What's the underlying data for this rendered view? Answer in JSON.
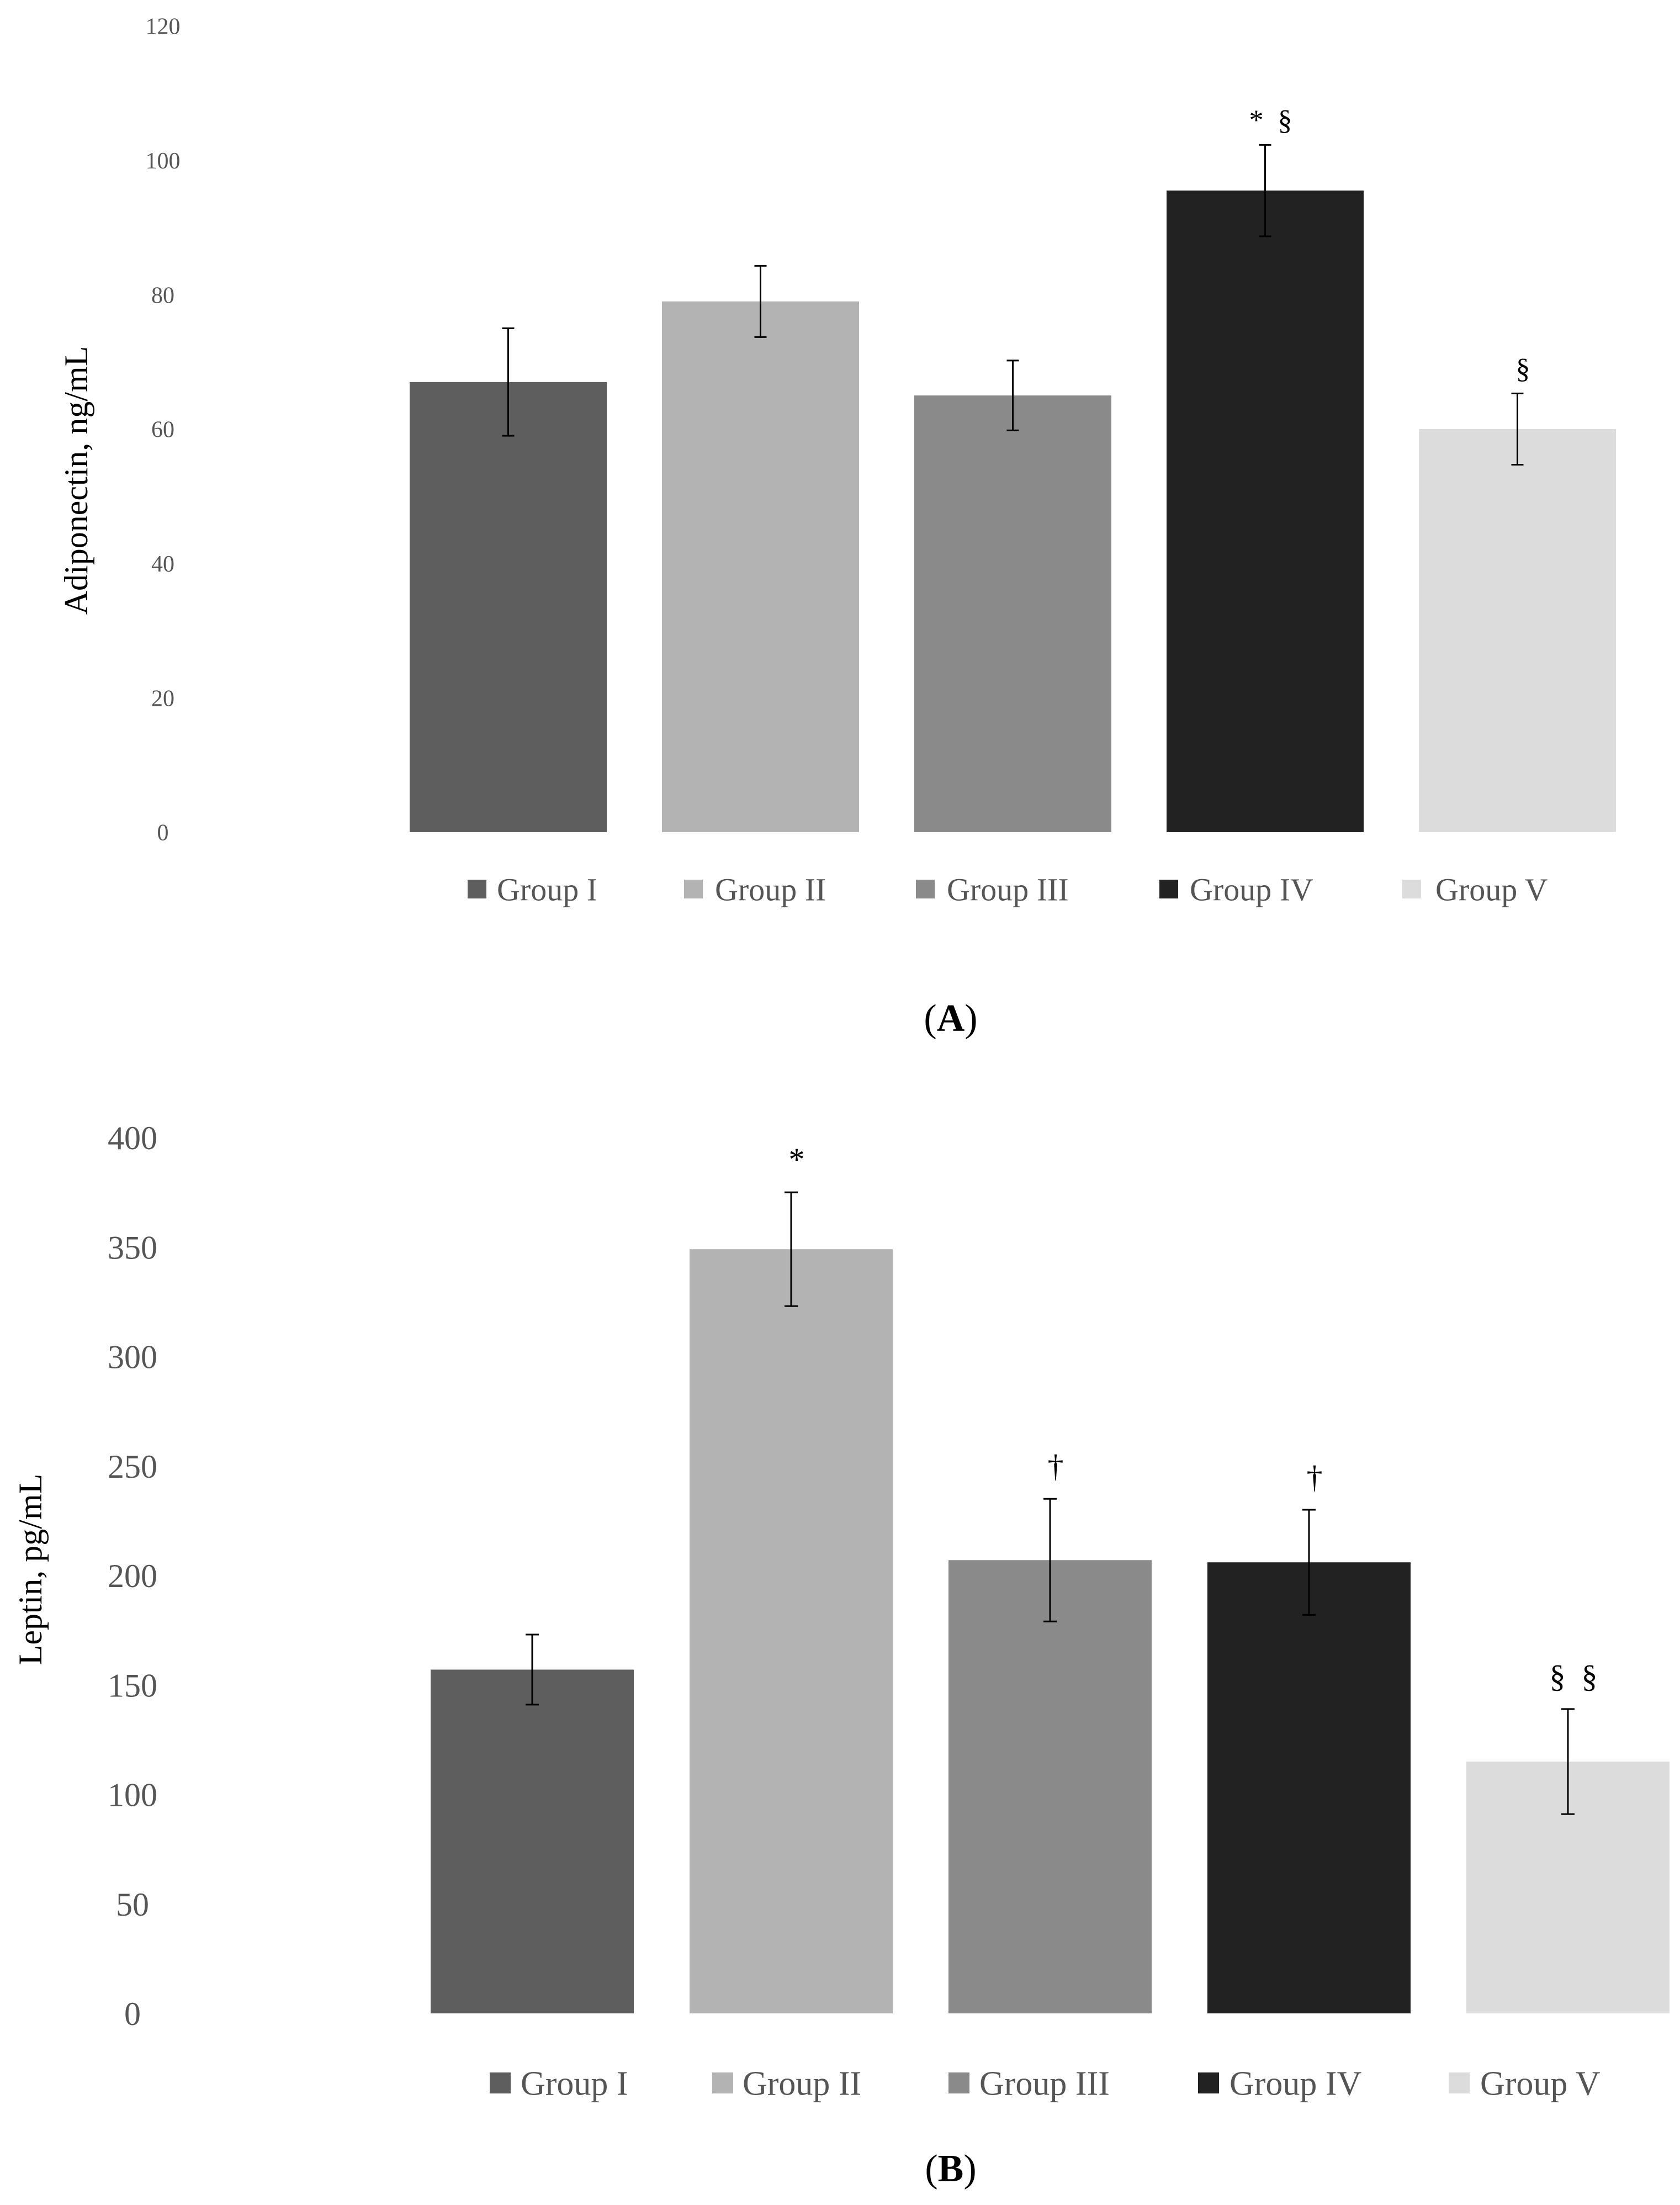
{
  "colors": {
    "group_i": "#5e5e5e",
    "group_ii": "#b3b3b3",
    "group_iii": "#8a8a8a",
    "group_iv": "#222222",
    "group_v": "#dcdcdc",
    "error_bar": "#000000"
  },
  "chart_data": [
    {
      "type": "bar",
      "panel_label": "A",
      "title": "",
      "xlabel": "",
      "ylabel": "Adiponectin,  ng/mL",
      "ylim": [
        0,
        120
      ],
      "yticks": [
        0,
        20,
        40,
        60,
        80,
        100,
        120
      ],
      "yticks_text": [
        "0",
        "20",
        "40",
        "60",
        "80",
        "100",
        "120"
      ],
      "categories": [
        "Group I",
        "Group II",
        "Group III",
        "Group IV",
        "Group V"
      ],
      "values": [
        67,
        79,
        65,
        95.5,
        60
      ],
      "errors": [
        8,
        5.3,
        5.2,
        6.8,
        5.3
      ],
      "annotations": [
        "",
        "",
        "",
        "*  §",
        "§"
      ],
      "grid": false,
      "legend_position": "bottom"
    },
    {
      "type": "bar",
      "panel_label": "B",
      "title": "",
      "xlabel": "",
      "ylabel": "Leptin, pg/mL",
      "ylim": [
        0,
        400
      ],
      "yticks": [
        0,
        50,
        100,
        150,
        200,
        250,
        300,
        350,
        400
      ],
      "yticks_text": [
        "0",
        "50",
        "100",
        "150",
        "200",
        "250",
        "300",
        "350",
        "400"
      ],
      "categories": [
        "Group I",
        "Group II",
        "Group III",
        "Group IV",
        "Group V"
      ],
      "values": [
        157,
        349,
        207,
        206,
        115
      ],
      "errors": [
        16,
        26,
        28,
        24,
        24
      ],
      "annotations": [
        "",
        "*",
        "†",
        "†",
        "§  §"
      ],
      "grid": false,
      "legend_position": "bottom"
    }
  ]
}
